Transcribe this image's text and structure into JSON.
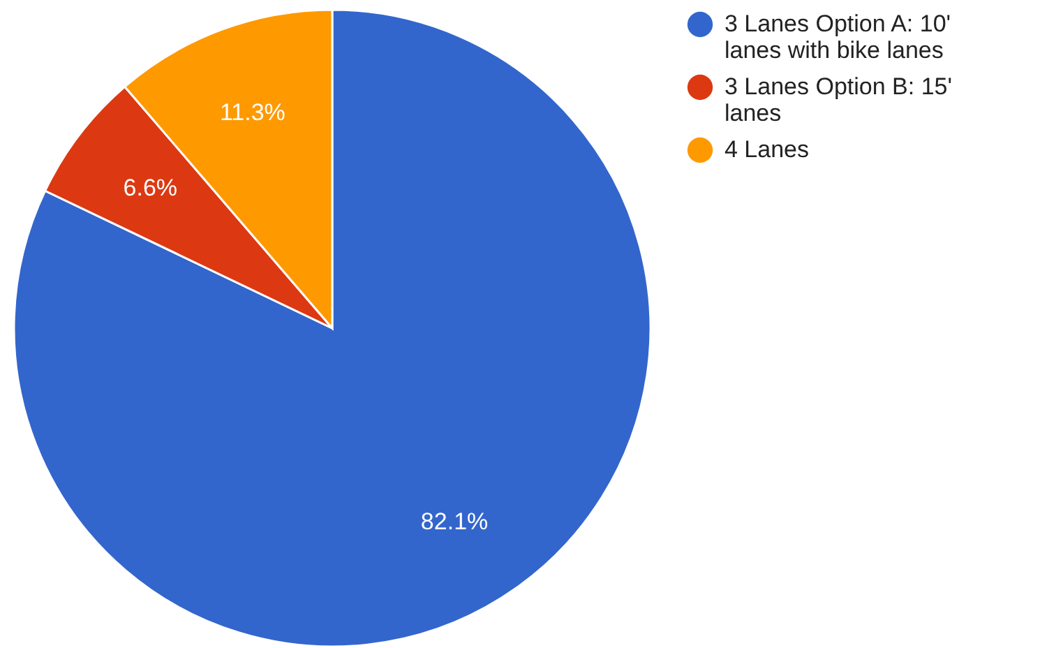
{
  "chart_data": {
    "type": "pie",
    "categories": [
      "3 Lanes Option A: 10' lanes with bike lanes",
      "3 Lanes Option B: 15' lanes",
      "4 Lanes"
    ],
    "values": [
      82.1,
      6.6,
      11.3
    ],
    "colors": [
      "#3366cc",
      "#dc3912",
      "#ff9900"
    ],
    "value_labels": [
      "82.1%",
      "6.6%",
      "11.3%"
    ],
    "legend": "top right"
  }
}
